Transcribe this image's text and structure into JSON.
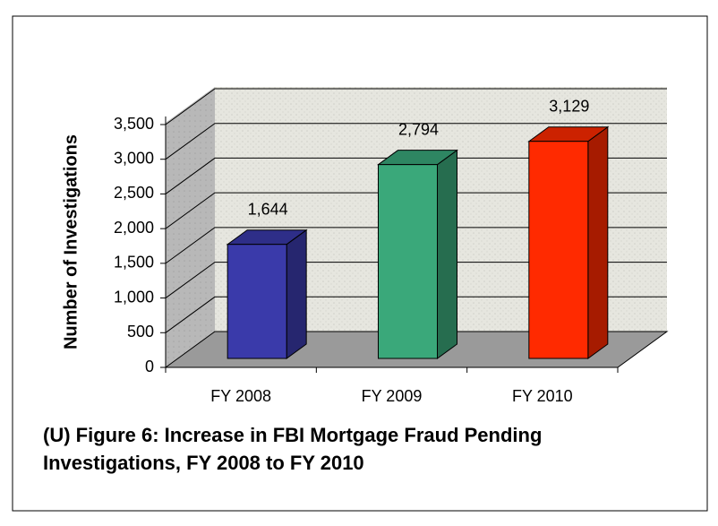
{
  "chart_data": {
    "type": "bar3d",
    "title": "(U) Figure 6: Increase in FBI Mortgage Fraud Pending Investigations, FY 2008 to FY 2010",
    "y_label": "Number of Investigations",
    "categories": [
      "FY 2008",
      "FY 2009",
      "FY 2010"
    ],
    "values": [
      1644,
      2794,
      3129
    ],
    "value_labels": [
      "1,644",
      "2,794",
      "3,129"
    ],
    "colors": [
      "#3a3aaa",
      "#3aa87a",
      "#ff2a00"
    ],
    "ylim": [
      0,
      3500
    ],
    "yticks": [
      0,
      500,
      {
        "value": 1000,
        "label": "1,000"
      },
      {
        "value": 1500,
        "label": "1,500"
      },
      {
        "value": 2000,
        "label": "2,000"
      },
      {
        "value": 2500,
        "label": "2,500"
      },
      {
        "value": 3000,
        "label": "3,000"
      },
      {
        "value": 3500,
        "label": "3,500"
      }
    ],
    "grid": true
  }
}
